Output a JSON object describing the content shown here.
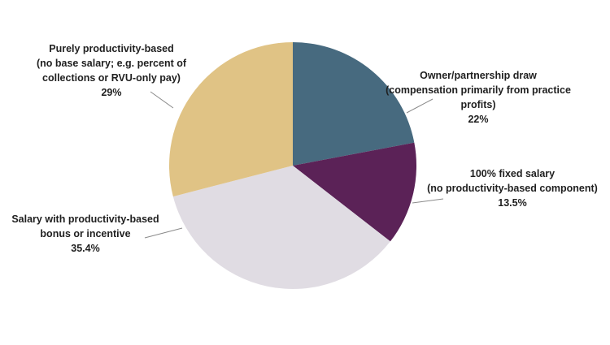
{
  "chart_data": {
    "type": "pie",
    "title": "",
    "slices": [
      {
        "label_lines": [
          "Owner/partnership draw",
          "(compensation primarily from practice",
          "profits)"
        ],
        "value": 22,
        "value_label": "22%",
        "color": "#476a7f"
      },
      {
        "label_lines": [
          "100% fixed salary",
          "(no productivity-based component)"
        ],
        "value": 13.5,
        "value_label": "13.5%",
        "color": "#5b2257"
      },
      {
        "label_lines": [
          "Salary with productivity-based",
          "bonus or incentive"
        ],
        "value": 35.4,
        "value_label": "35.4%",
        "color": "#e0dce3"
      },
      {
        "label_lines": [
          "Purely productivity-based",
          "(no base salary; e.g. percent of",
          "collections or RVU-only pay)"
        ],
        "value": 29,
        "value_label": "29%",
        "color": "#e0c385"
      }
    ],
    "start_angle_deg": 90,
    "direction": "clockwise",
    "legend": "none",
    "leader_lines": true
  }
}
